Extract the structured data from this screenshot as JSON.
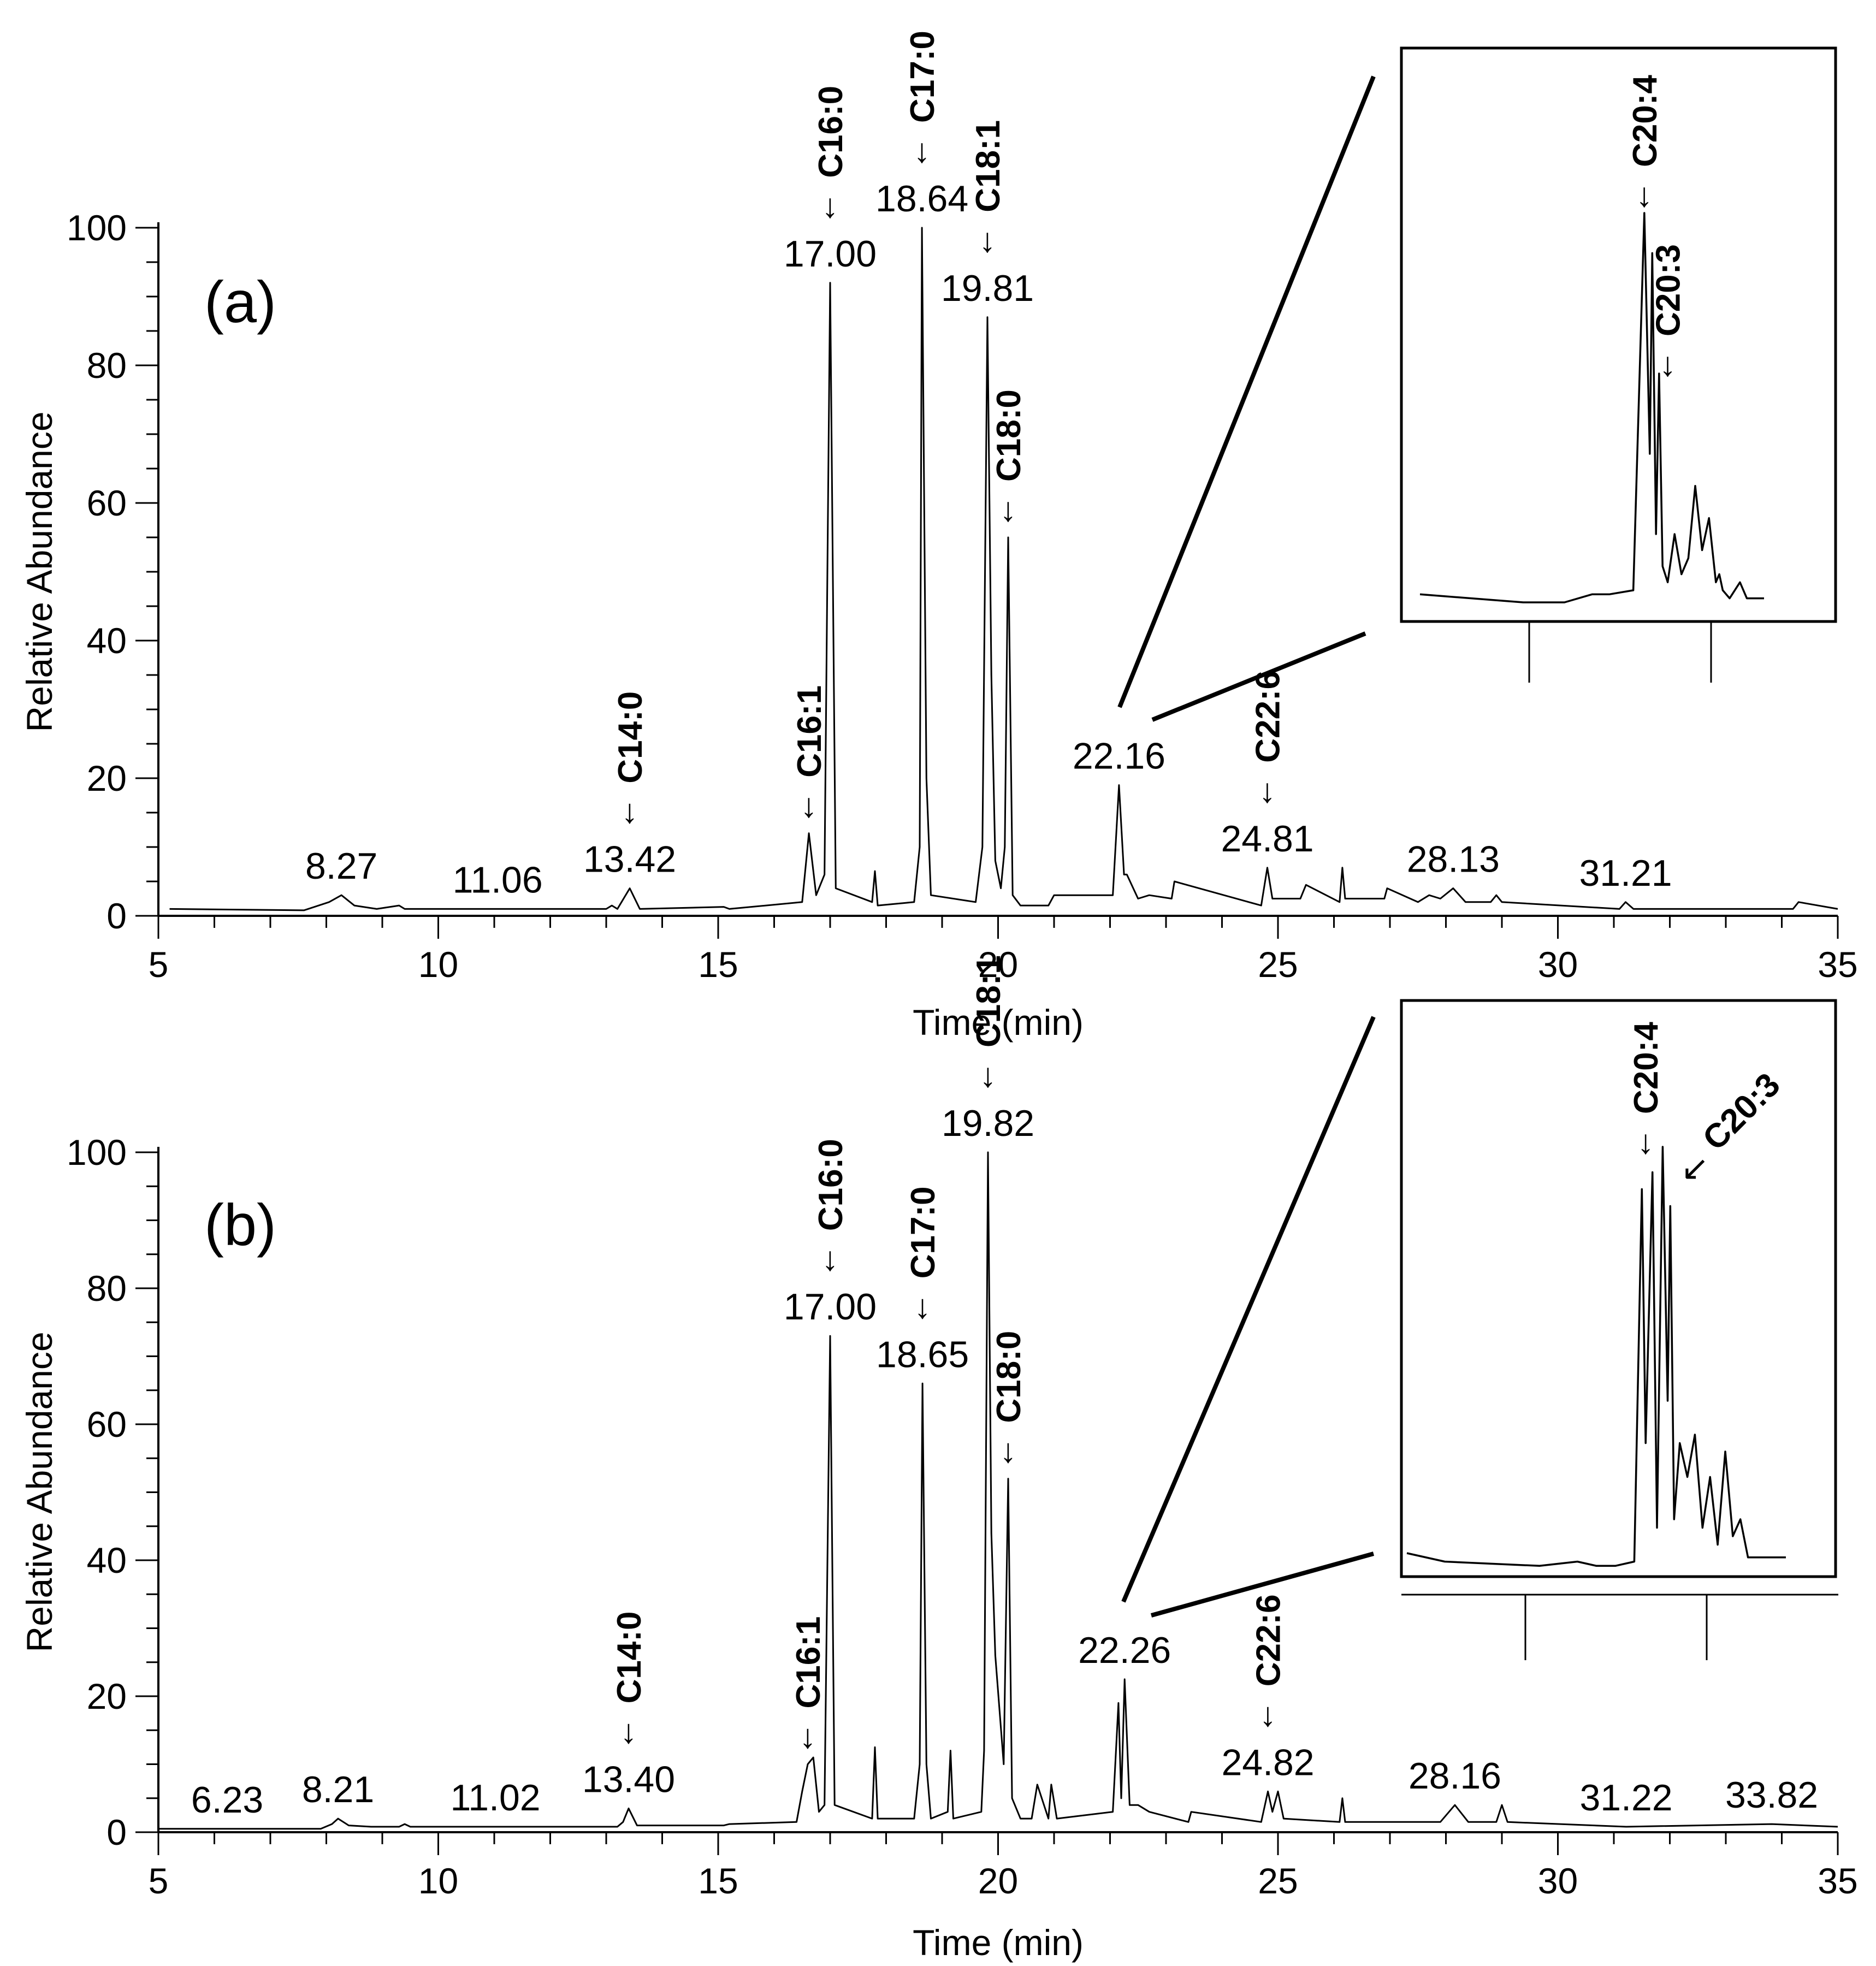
{
  "chart_data": [
    {
      "type": "line",
      "panel": "(a)",
      "xlabel": "Time (min)",
      "ylabel": "Relative Abundance",
      "xlim": [
        5,
        35
      ],
      "ylim": [
        0,
        100
      ],
      "xticks": [
        5,
        10,
        15,
        20,
        25,
        30,
        35
      ],
      "yticks": [
        0,
        20,
        40,
        60,
        80,
        100
      ],
      "series": [
        {
          "name": "chromatogram (a)",
          "x": [
            5.2,
            7.6,
            8.05,
            8.27,
            8.5,
            8.9,
            9.3,
            9.4,
            9.5,
            11.06,
            13.0,
            13.1,
            13.2,
            13.42,
            13.6,
            15.1,
            15.2,
            16.5,
            16.62,
            16.75,
            16.9,
            17.0,
            17.1,
            17.75,
            17.8,
            17.85,
            18.5,
            18.6,
            18.64,
            18.72,
            18.8,
            19.6,
            19.72,
            19.81,
            19.88,
            19.95,
            20.05,
            20.12,
            20.18,
            20.26,
            20.4,
            20.9,
            21.0,
            22.05,
            22.16,
            22.25,
            22.3,
            22.5,
            22.7,
            23.1,
            23.15,
            24.7,
            24.81,
            24.9,
            25.4,
            25.5,
            26.1,
            26.15,
            26.2,
            26.9,
            26.95,
            27.5,
            27.7,
            27.9,
            28.13,
            28.35,
            28.8,
            28.9,
            29.0,
            31.1,
            31.21,
            31.35,
            34.2,
            34.3,
            35.0
          ],
          "y": [
            1,
            0.8,
            2,
            3,
            1.5,
            1,
            1.5,
            1,
            1,
            1,
            1,
            1.5,
            1,
            4,
            1,
            1.3,
            1,
            2,
            12,
            3,
            6,
            92,
            4,
            2,
            6.5,
            1.5,
            2,
            10,
            100,
            20,
            3,
            2,
            10,
            87,
            35,
            8,
            4,
            10,
            55,
            3,
            1.5,
            1.5,
            3,
            3,
            19,
            6,
            6,
            2.5,
            3,
            2.5,
            5,
            1.5,
            7,
            2.5,
            2.5,
            4.5,
            2,
            7,
            2.5,
            2.5,
            4,
            2,
            3,
            2.5,
            4,
            2,
            2,
            3,
            2,
            1,
            2,
            1,
            1,
            2,
            1
          ]
        }
      ],
      "retention_time_labels": [
        {
          "text": "8.27",
          "x": 8.27,
          "y": 3
        },
        {
          "text": "11.06",
          "x": 11.06,
          "y": 1
        },
        {
          "text": "13.42",
          "x": 13.42,
          "y": 4
        },
        {
          "text": "17.00",
          "x": 17.0,
          "y": 92
        },
        {
          "text": "18.64",
          "x": 18.64,
          "y": 100
        },
        {
          "text": "19.81",
          "x": 19.81,
          "y": 87
        },
        {
          "text": "22.16",
          "x": 22.16,
          "y": 19
        },
        {
          "text": "24.81",
          "x": 24.81,
          "y": 7
        },
        {
          "text": "28.13",
          "x": 28.13,
          "y": 4
        },
        {
          "text": "31.21",
          "x": 31.21,
          "y": 2
        }
      ],
      "fatty_acid_annotations": [
        {
          "text": "C14:0",
          "x": 13.42,
          "y": 4
        },
        {
          "text": "C16:1",
          "x": 16.62,
          "y": 12
        },
        {
          "text": "C16:0",
          "x": 17.0,
          "y": 92
        },
        {
          "text": "C17:0",
          "x": 18.64,
          "y": 100
        },
        {
          "text": "C18:1",
          "x": 19.81,
          "y": 87
        },
        {
          "text": "C18:0",
          "x": 20.18,
          "y": 55
        },
        {
          "text": "C22:6",
          "x": 24.81,
          "y": 7
        }
      ],
      "inset": {
        "zoom_of": "22.16",
        "annotations": [
          "C20:4",
          "C20:3"
        ],
        "x": [
          0,
          0.3,
          0.42,
          0.5,
          0.55,
          0.62,
          0.652,
          0.668,
          0.675,
          0.686,
          0.695,
          0.705,
          0.72,
          0.74,
          0.76,
          0.78,
          0.8,
          0.82,
          0.84,
          0.86,
          0.87,
          0.88,
          0.9,
          0.93,
          0.95,
          1.0
        ],
        "y": [
          5,
          3,
          3,
          5,
          5,
          6,
          100,
          40,
          90,
          20,
          60,
          12,
          8,
          20,
          10,
          14,
          32,
          16,
          24,
          8,
          10,
          6,
          4,
          8,
          4,
          4
        ]
      }
    },
    {
      "type": "line",
      "panel": "(b)",
      "xlabel": "Time (min)",
      "ylabel": "Relative Abundance",
      "xlim": [
        5,
        35
      ],
      "ylim": [
        0,
        100
      ],
      "xticks": [
        5,
        10,
        15,
        20,
        25,
        30,
        35
      ],
      "yticks": [
        0,
        20,
        40,
        60,
        80,
        100
      ],
      "series": [
        {
          "name": "chromatogram (b)",
          "x": [
            5.0,
            6.23,
            7.9,
            8.1,
            8.21,
            8.4,
            8.8,
            9.3,
            9.4,
            9.5,
            11.02,
            13.2,
            13.3,
            13.4,
            13.55,
            15.1,
            15.2,
            16.4,
            16.5,
            16.6,
            16.7,
            16.8,
            16.9,
            17.0,
            17.08,
            17.75,
            17.8,
            17.85,
            18.5,
            18.6,
            18.65,
            18.72,
            18.8,
            19.1,
            19.15,
            19.2,
            19.7,
            19.75,
            19.82,
            19.88,
            19.95,
            20.1,
            20.18,
            20.25,
            20.4,
            20.6,
            20.7,
            20.9,
            20.95,
            21.05,
            22.05,
            22.15,
            22.2,
            22.26,
            22.35,
            22.5,
            22.7,
            23.4,
            23.45,
            24.7,
            24.82,
            24.9,
            25.0,
            25.1,
            26.1,
            26.15,
            26.2,
            27.9,
            28.16,
            28.4,
            28.9,
            29.0,
            29.1,
            31.22,
            33.82,
            35.0
          ],
          "y": [
            0.5,
            0.5,
            0.5,
            1.2,
            2,
            1,
            0.8,
            0.8,
            1.2,
            0.8,
            0.8,
            0.8,
            1.5,
            3.5,
            1,
            1,
            1.2,
            1.5,
            6,
            10,
            11,
            3,
            4,
            73,
            4,
            2,
            12.5,
            2,
            2,
            10,
            66,
            10,
            2,
            3,
            12,
            2,
            3,
            12,
            100,
            44,
            26,
            10,
            52,
            5,
            2,
            2,
            7,
            2,
            7,
            2,
            3,
            19,
            5,
            22.5,
            4,
            4,
            3,
            1.5,
            3,
            1.5,
            6,
            3,
            6,
            2,
            1.5,
            5,
            1.5,
            1.5,
            4,
            1.5,
            1.5,
            4,
            1.5,
            0.8,
            1.2,
            0.8
          ]
        }
      ],
      "retention_time_labels": [
        {
          "text": "6.23",
          "x": 6.23,
          "y": 0.5
        },
        {
          "text": "8.21",
          "x": 8.21,
          "y": 2
        },
        {
          "text": "11.02",
          "x": 11.02,
          "y": 0.8
        },
        {
          "text": "13.40",
          "x": 13.4,
          "y": 3.5
        },
        {
          "text": "17.00",
          "x": 17.0,
          "y": 73
        },
        {
          "text": "18.65",
          "x": 18.65,
          "y": 66
        },
        {
          "text": "19.82",
          "x": 19.82,
          "y": 100
        },
        {
          "text": "22.26",
          "x": 22.26,
          "y": 22.5
        },
        {
          "text": "24.82",
          "x": 24.82,
          "y": 6
        },
        {
          "text": "28.16",
          "x": 28.16,
          "y": 4
        },
        {
          "text": "31.22",
          "x": 31.22,
          "y": 0.8
        },
        {
          "text": "33.82",
          "x": 33.82,
          "y": 1.2
        }
      ],
      "fatty_acid_annotations": [
        {
          "text": "C14:0",
          "x": 13.4,
          "y": 3.5
        },
        {
          "text": "C16:1",
          "x": 16.6,
          "y": 10
        },
        {
          "text": "C16:0",
          "x": 17.0,
          "y": 73
        },
        {
          "text": "C17:0",
          "x": 18.65,
          "y": 66
        },
        {
          "text": "C18:1",
          "x": 19.82,
          "y": 100
        },
        {
          "text": "C18:0",
          "x": 20.18,
          "y": 52
        },
        {
          "text": "C22:6",
          "x": 24.82,
          "y": 6
        }
      ],
      "inset": {
        "zoom_of": "22.26",
        "annotations": [
          "C20:4",
          "C20:3"
        ],
        "x": [
          0,
          0.1,
          0.35,
          0.45,
          0.5,
          0.55,
          0.6,
          0.62,
          0.63,
          0.648,
          0.66,
          0.675,
          0.688,
          0.695,
          0.705,
          0.72,
          0.74,
          0.76,
          0.78,
          0.8,
          0.82,
          0.84,
          0.86,
          0.88,
          0.9,
          1.0
        ],
        "y": [
          4,
          2,
          1,
          2,
          1,
          1,
          2,
          90,
          30,
          94,
          10,
          100,
          40,
          86,
          12,
          30,
          22,
          32,
          10,
          22,
          6,
          28,
          8,
          12,
          3,
          3
        ]
      }
    }
  ]
}
